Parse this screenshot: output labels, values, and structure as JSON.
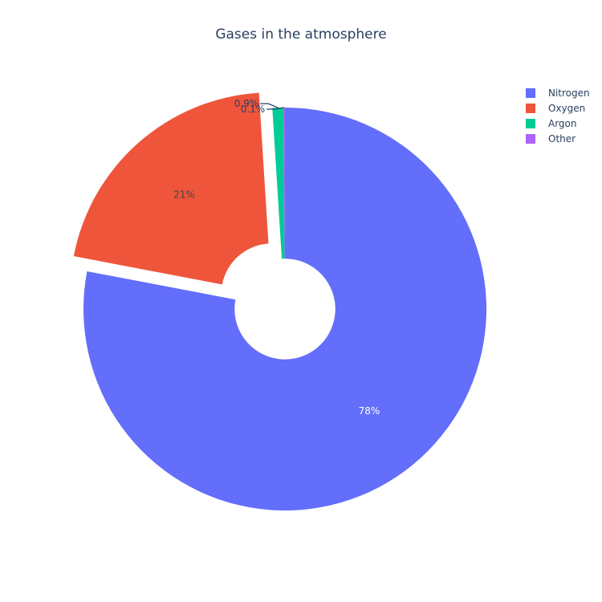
{
  "chart_data": {
    "type": "pie",
    "title": "Gases in the atmosphere",
    "hole": 0.25,
    "categories": [
      "Nitrogen",
      "Oxygen",
      "Argon",
      "Other"
    ],
    "values": [
      78,
      21,
      0.9,
      0.1
    ],
    "labels": [
      "78%",
      "21%",
      "0.9%",
      "0.1%"
    ],
    "colors": [
      "#636efa",
      "#ef553b",
      "#00cc96",
      "#ab63fa"
    ],
    "pull": [
      0,
      0.1,
      0,
      0
    ],
    "direction": "clockwise",
    "legend_position": "top-right"
  }
}
